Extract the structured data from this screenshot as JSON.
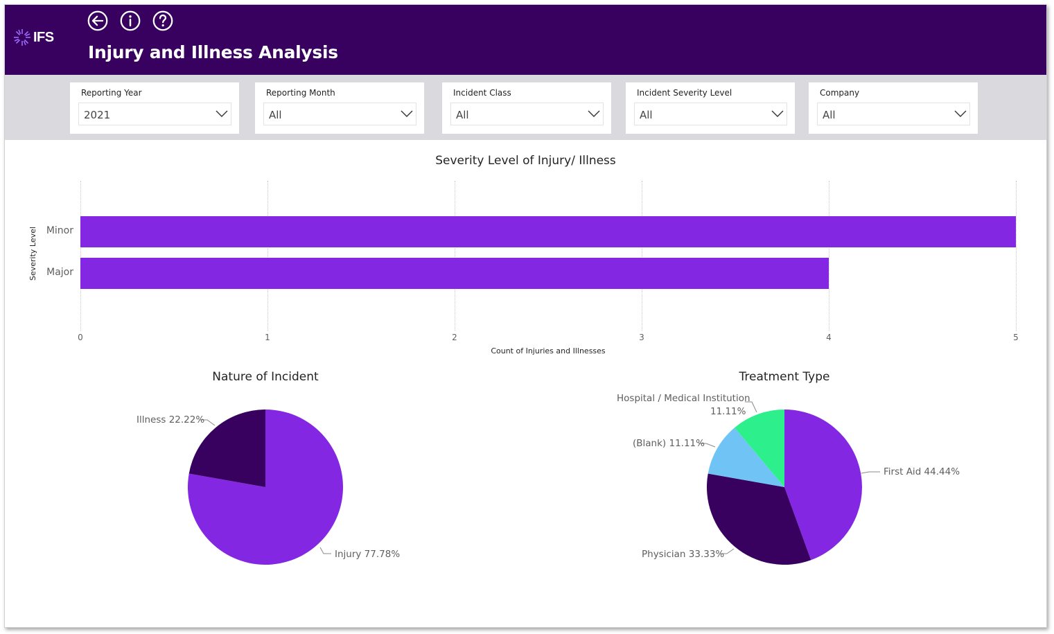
{
  "app": {
    "logo_text": "IFS",
    "page_title": "Injury and Illness Analysis",
    "nav": [
      "back-icon",
      "info-icon",
      "help-icon"
    ]
  },
  "colors": {
    "header_bg": "#38005f",
    "filterbar_bg": "#d9d9de",
    "bar": "#8427e3",
    "injury": "#8427e3",
    "illness": "#38005f",
    "first_aid": "#8427e3",
    "physician": "#38005f",
    "blank": "#6fc4f5",
    "hospital": "#2df08c"
  },
  "filters": [
    {
      "label": "Reporting Year",
      "value": "2021"
    },
    {
      "label": "Reporting Month",
      "value": "All"
    },
    {
      "label": "Incident Class",
      "value": "All"
    },
    {
      "label": "Incident Severity Level",
      "value": "All"
    },
    {
      "label": "Company",
      "value": "All"
    }
  ],
  "chart_data": [
    {
      "type": "bar",
      "orientation": "horizontal",
      "title": "Severity Level of Injury/ Illness",
      "xlabel": "Count of Injuries and Illnesses",
      "ylabel": "Severity Level",
      "categories": [
        "Minor",
        "Major"
      ],
      "values": [
        5,
        4
      ],
      "xlim": [
        0,
        5
      ],
      "xticks": [
        "0",
        "1",
        "2",
        "3",
        "4",
        "5"
      ],
      "grid": true
    },
    {
      "type": "pie",
      "title": "Nature of Incident",
      "slices": [
        {
          "label": "Injury",
          "value": 77.78,
          "display": "Injury 77.78%"
        },
        {
          "label": "Illness",
          "value": 22.22,
          "display": "Illness 22.22%"
        }
      ]
    },
    {
      "type": "pie",
      "title": "Treatment Type",
      "slices": [
        {
          "label": "First Aid",
          "value": 44.44,
          "display": "First Aid 44.44%"
        },
        {
          "label": "Physician",
          "value": 33.33,
          "display": "Physician 33.33%"
        },
        {
          "label": "(Blank)",
          "value": 11.11,
          "display": "(Blank) 11.11%"
        },
        {
          "label": "Hospital / Medical Institution",
          "value": 11.11,
          "display_line1": "Hospital / Medical Institution",
          "display_line2": "11.11%"
        }
      ]
    }
  ]
}
